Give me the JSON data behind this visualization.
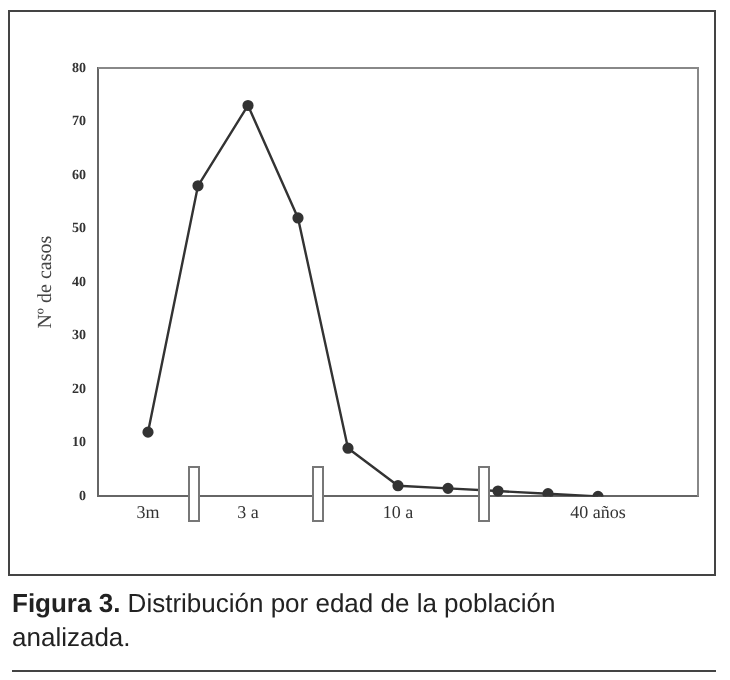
{
  "chart_data": {
    "type": "line",
    "ylabel": "Nº de casos",
    "categories": [
      "3m",
      null,
      "3 a",
      null,
      null,
      "10 a",
      null,
      null,
      null,
      "40 años"
    ],
    "series": [
      {
        "color": "#333333",
        "values": [
          12,
          58,
          73,
          52,
          9,
          2,
          1.5,
          1,
          0.5,
          0
        ]
      }
    ],
    "ylim": [
      0,
      80
    ],
    "yticks": [
      0,
      10,
      20,
      30,
      40,
      50,
      60,
      70,
      80
    ],
    "grid": false,
    "legend": false,
    "marker": "circle",
    "line_style": "solid",
    "annotations": [
      "Figura 3. Distribución por edad de la población analizada."
    ]
  }
}
